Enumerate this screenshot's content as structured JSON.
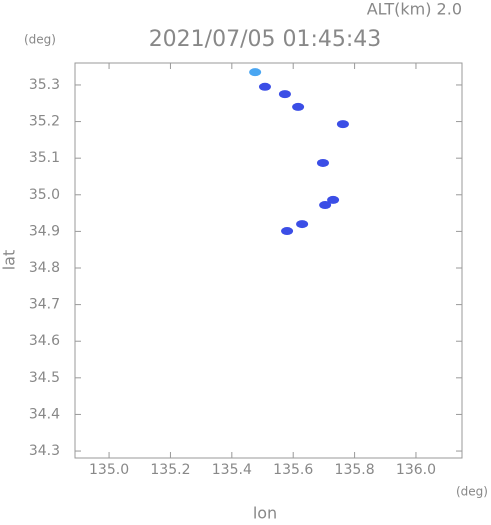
{
  "chart_data": {
    "type": "scatter",
    "title": "2021/07/05 01:45:43",
    "subtitle": "ALT(km) 2.0",
    "x_label": "lon",
    "y_label": "lat",
    "x_unit": "(deg)",
    "y_unit": "(deg)",
    "xlim": [
      134.889,
      136.15
    ],
    "ylim": [
      34.281,
      35.36
    ],
    "xticks": [
      {
        "value": 135,
        "label": "135.0"
      },
      135.2,
      135.4,
      135.6,
      135.8,
      {
        "value": 136,
        "label": "136.0"
      }
    ],
    "yticks": [
      34.3,
      34.4,
      34.5,
      34.6,
      34.7,
      34.8,
      34.9,
      {
        "value": 35,
        "label": "35.0"
      },
      35.1,
      35.2,
      35.3
    ],
    "series": [
      {
        "color": "#4aa6f2",
        "x": [
          135.476
        ],
        "values": [
          35.335
        ]
      },
      {
        "color": "#3b4ee6",
        "x": [
          135.508,
          135.573,
          135.616,
          135.762,
          135.697,
          135.73,
          135.704,
          135.629,
          135.58
        ],
        "values": [
          35.295,
          35.275,
          35.24,
          35.193,
          35.087,
          34.986,
          34.972,
          34.92,
          34.901
        ]
      }
    ]
  }
}
